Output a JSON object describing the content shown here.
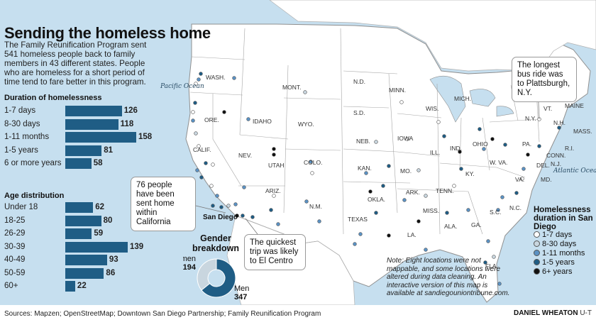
{
  "title": "Sending the homeless home",
  "intro": "The Family Reunification Program sent 541 homeless people back to family members in 43 different states. People who are homeless for a short period of time tend to fare better in this program.",
  "colors": {
    "ocean": "#c6dfef",
    "land": "#ffffff",
    "outline": "#8f8f8f",
    "bar": "#1f5d85",
    "dot_1_7_days": "#ffffff",
    "dot_8_30_days": "#c9d6df",
    "dot_1_11_months": "#5b92c4",
    "dot_1_5_years": "#1f5d85",
    "dot_6_plus_years": "#111111"
  },
  "chart_data": [
    {
      "type": "bar",
      "title": "Duration of homelessness",
      "categories": [
        "1-7 days",
        "8-30 days",
        "1-11 months",
        "1-5 years",
        "6 or more years"
      ],
      "values": [
        126,
        118,
        158,
        81,
        58
      ]
    },
    {
      "type": "bar",
      "title": "Age distribution",
      "categories": [
        "Under 18",
        "18-25",
        "26-29",
        "30-39",
        "40-49",
        "50-59",
        "60+"
      ],
      "values": [
        62,
        80,
        59,
        139,
        93,
        86,
        22
      ]
    },
    {
      "type": "pie",
      "title": "Gender breakdown",
      "categories": [
        "Women",
        "Men"
      ],
      "values": [
        194,
        347
      ]
    }
  ],
  "legend": {
    "title": "Homelessness duration in San Diego",
    "items": [
      "1-7 days",
      "8-30 days",
      "1-11 months",
      "1-5 years",
      "6+ years"
    ]
  },
  "map": {
    "ocean_labels": [
      "Pacific Ocean",
      "Atlantic Ocean"
    ],
    "city_label": "San Diego",
    "states": [
      "WASH.",
      "ORE.",
      "CALIF.",
      "IDAHO",
      "NEV.",
      "MONT.",
      "WYO.",
      "UTAH",
      "COLO.",
      "ARIZ.",
      "N.M.",
      "N.D.",
      "S.D.",
      "NEB.",
      "KAN.",
      "OKLA.",
      "TEXAS",
      "MINN.",
      "IOWA",
      "MO.",
      "ARK.",
      "LA.",
      "WIS.",
      "ILL.",
      "MICH.",
      "IND.",
      "OHIO",
      "KY.",
      "TENN.",
      "MISS.",
      "ALA.",
      "GA.",
      "FLA.",
      "S.C.",
      "N.C.",
      "VA.",
      "W. VA.",
      "PA.",
      "N.Y.",
      "VT.",
      "N.H.",
      "MAINE",
      "MASS.",
      "R.I.",
      "CONN.",
      "N.J.",
      "DEL.",
      "MD."
    ],
    "dots": [
      {
        "name": "Seattle",
        "category": 3
      },
      {
        "name": "Tacoma",
        "category": 2
      },
      {
        "name": "Spokane",
        "category": 2
      },
      {
        "name": "Olympia",
        "category": 0
      },
      {
        "name": "Portland",
        "category": 3
      },
      {
        "name": "Salem",
        "category": 0
      },
      {
        "name": "Eugene",
        "category": 2
      },
      {
        "name": "Medford",
        "category": 1
      },
      {
        "name": "Bend",
        "category": 4
      },
      {
        "name": "Boise",
        "category": 2
      },
      {
        "name": "Reno",
        "category": 0
      },
      {
        "name": "Las Vegas",
        "category": 2
      },
      {
        "name": "Redding",
        "category": 0
      },
      {
        "name": "Sacramento",
        "category": 3
      },
      {
        "name": "San Francisco",
        "category": 2
      },
      {
        "name": "San Jose",
        "category": 3
      },
      {
        "name": "Fresno",
        "category": 0
      },
      {
        "name": "Bakersfield",
        "category": 2
      },
      {
        "name": "Santa Barbara",
        "category": 3
      },
      {
        "name": "Los Angeles",
        "category": 3
      },
      {
        "name": "Riverside",
        "category": 1
      },
      {
        "name": "Palm Springs",
        "category": 2
      },
      {
        "name": "El Centro",
        "category": 3
      },
      {
        "name": "Salt Lake City",
        "category": 4
      },
      {
        "name": "Provo",
        "category": 4
      },
      {
        "name": "Phoenix",
        "category": 3
      },
      {
        "name": "Tucson",
        "category": 2
      },
      {
        "name": "Flagstaff",
        "category": 0
      },
      {
        "name": "Yuma",
        "category": 3
      },
      {
        "name": "Albuquerque",
        "category": 2
      },
      {
        "name": "Denver",
        "category": 2
      },
      {
        "name": "Colorado Springs",
        "category": 0
      },
      {
        "name": "Billings",
        "category": 1
      },
      {
        "name": "Minneapolis",
        "category": 0
      },
      {
        "name": "Des Moines",
        "category": 0
      },
      {
        "name": "Omaha",
        "category": 1
      },
      {
        "name": "Wichita",
        "category": 2
      },
      {
        "name": "Kansas City",
        "category": 3
      },
      {
        "name": "St. Louis",
        "category": 1
      },
      {
        "name": "Oklahoma City",
        "category": 4
      },
      {
        "name": "Tulsa",
        "category": 3
      },
      {
        "name": "Dallas",
        "category": 3
      },
      {
        "name": "Austin",
        "category": 2
      },
      {
        "name": "Houston",
        "category": 4
      },
      {
        "name": "San Antonio",
        "category": 2
      },
      {
        "name": "El Paso",
        "category": 2
      },
      {
        "name": "Little Rock",
        "category": 2
      },
      {
        "name": "New Orleans",
        "category": 2
      },
      {
        "name": "Jackson",
        "category": 4
      },
      {
        "name": "Birmingham",
        "category": 3
      },
      {
        "name": "Atlanta",
        "category": 2
      },
      {
        "name": "Nashville",
        "category": 0
      },
      {
        "name": "Memphis",
        "category": 1
      },
      {
        "name": "Louisville",
        "category": 3
      },
      {
        "name": "Chicago",
        "category": 3
      },
      {
        "name": "Indianapolis",
        "category": 4
      },
      {
        "name": "Detroit",
        "category": 3
      },
      {
        "name": "Columbus",
        "category": 2
      },
      {
        "name": "Cleveland",
        "category": 4
      },
      {
        "name": "Milwaukee",
        "category": 0
      },
      {
        "name": "Pittsburgh",
        "category": 3
      },
      {
        "name": "Philadelphia",
        "category": 4
      },
      {
        "name": "New York",
        "category": 3
      },
      {
        "name": "Boston",
        "category": 3
      },
      {
        "name": "Plattsburgh",
        "category": 0
      },
      {
        "name": "Washington",
        "category": 2
      },
      {
        "name": "Richmond",
        "category": 0
      },
      {
        "name": "Charlotte",
        "category": 2
      },
      {
        "name": "Raleigh",
        "category": 3
      },
      {
        "name": "Columbia",
        "category": 2
      },
      {
        "name": "Jacksonville",
        "category": 2
      },
      {
        "name": "Orlando",
        "category": 1
      },
      {
        "name": "Tampa",
        "category": 3
      },
      {
        "name": "Miami",
        "category": 2
      }
    ]
  },
  "callouts": {
    "california": "76 people have been sent home within California",
    "bus": "The longest bus ride was to Plattsburgh, N.Y.",
    "el_centro": "The quickest trip was likely to El Centro"
  },
  "note": "Note: Eight locations were not mappable, and some locations were altered during data cleaning. An interactive version of this map is available at sandiegouniontribune.com.",
  "footer": {
    "sources": "Sources: Mapzen; OpenStreetMap; Downtown San Diego Partnership; Family Reunification Program",
    "credit_name": "DANIEL WHEATON",
    "credit_org": "U-T"
  }
}
